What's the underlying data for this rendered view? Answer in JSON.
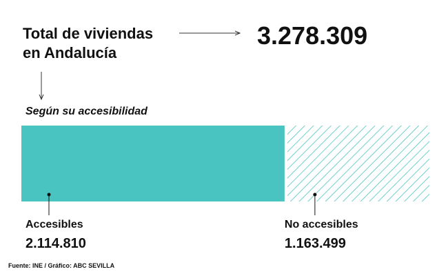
{
  "chart_data": {
    "type": "bar",
    "title_lines": [
      "Total de viviendas",
      "en Andalucía"
    ],
    "total": {
      "value": 3278309,
      "label": "3.278.309"
    },
    "subtitle": "Según su accesibilidad",
    "series": [
      {
        "name": "Accesibles",
        "color": "#4ac4c0",
        "fill": "solid",
        "values": [
          2114810
        ],
        "value_labels": [
          "2.114.810"
        ]
      },
      {
        "name": "No accesibles",
        "color": "#4ac4c0",
        "fill": "hatch",
        "values": [
          1163499
        ],
        "value_labels": [
          "1.163.499"
        ]
      }
    ],
    "source": "Fuente: INE / Gráfico: ABC SEVILLA"
  }
}
